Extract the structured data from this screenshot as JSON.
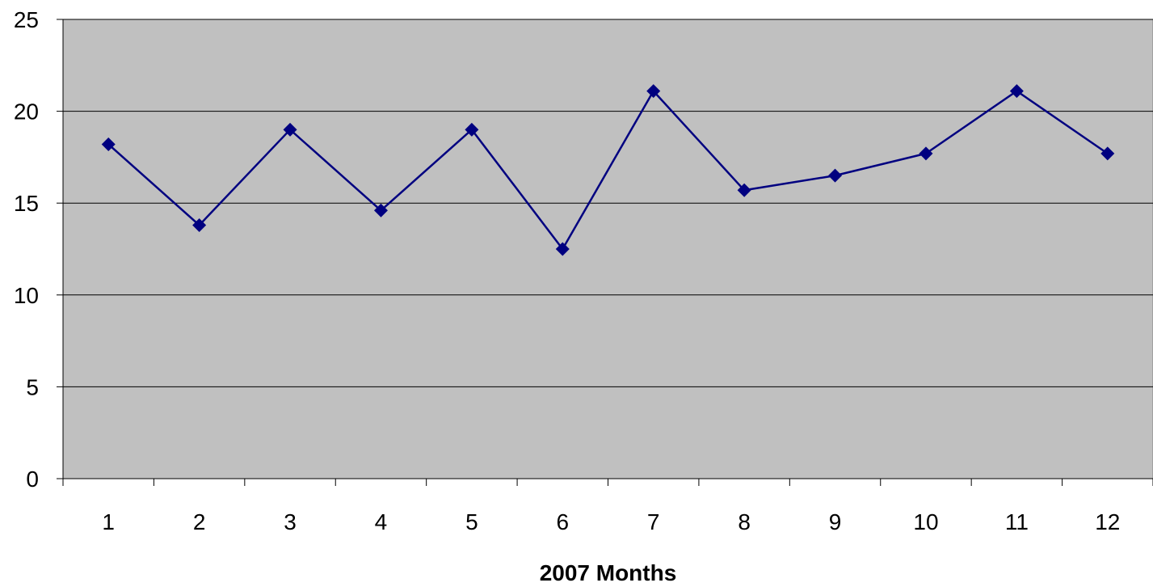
{
  "chart_data": {
    "type": "line",
    "title": "",
    "xlabel": "2007 Months",
    "ylabel": "",
    "categories": [
      "1",
      "2",
      "3",
      "4",
      "5",
      "6",
      "7",
      "8",
      "9",
      "10",
      "11",
      "12"
    ],
    "series": [
      {
        "values": [
          18.2,
          13.8,
          19.0,
          14.6,
          19.0,
          12.5,
          21.1,
          15.7,
          16.5,
          17.7,
          21.1,
          17.7
        ],
        "color": "#000080",
        "marker": "diamond"
      }
    ],
    "ylim": [
      0,
      25
    ],
    "yticks": [
      "0",
      "5",
      "10",
      "15",
      "20",
      "25"
    ],
    "grid": true,
    "legend": "none",
    "plot_background": "#C0C0C0",
    "gridline_color": "#000000"
  }
}
